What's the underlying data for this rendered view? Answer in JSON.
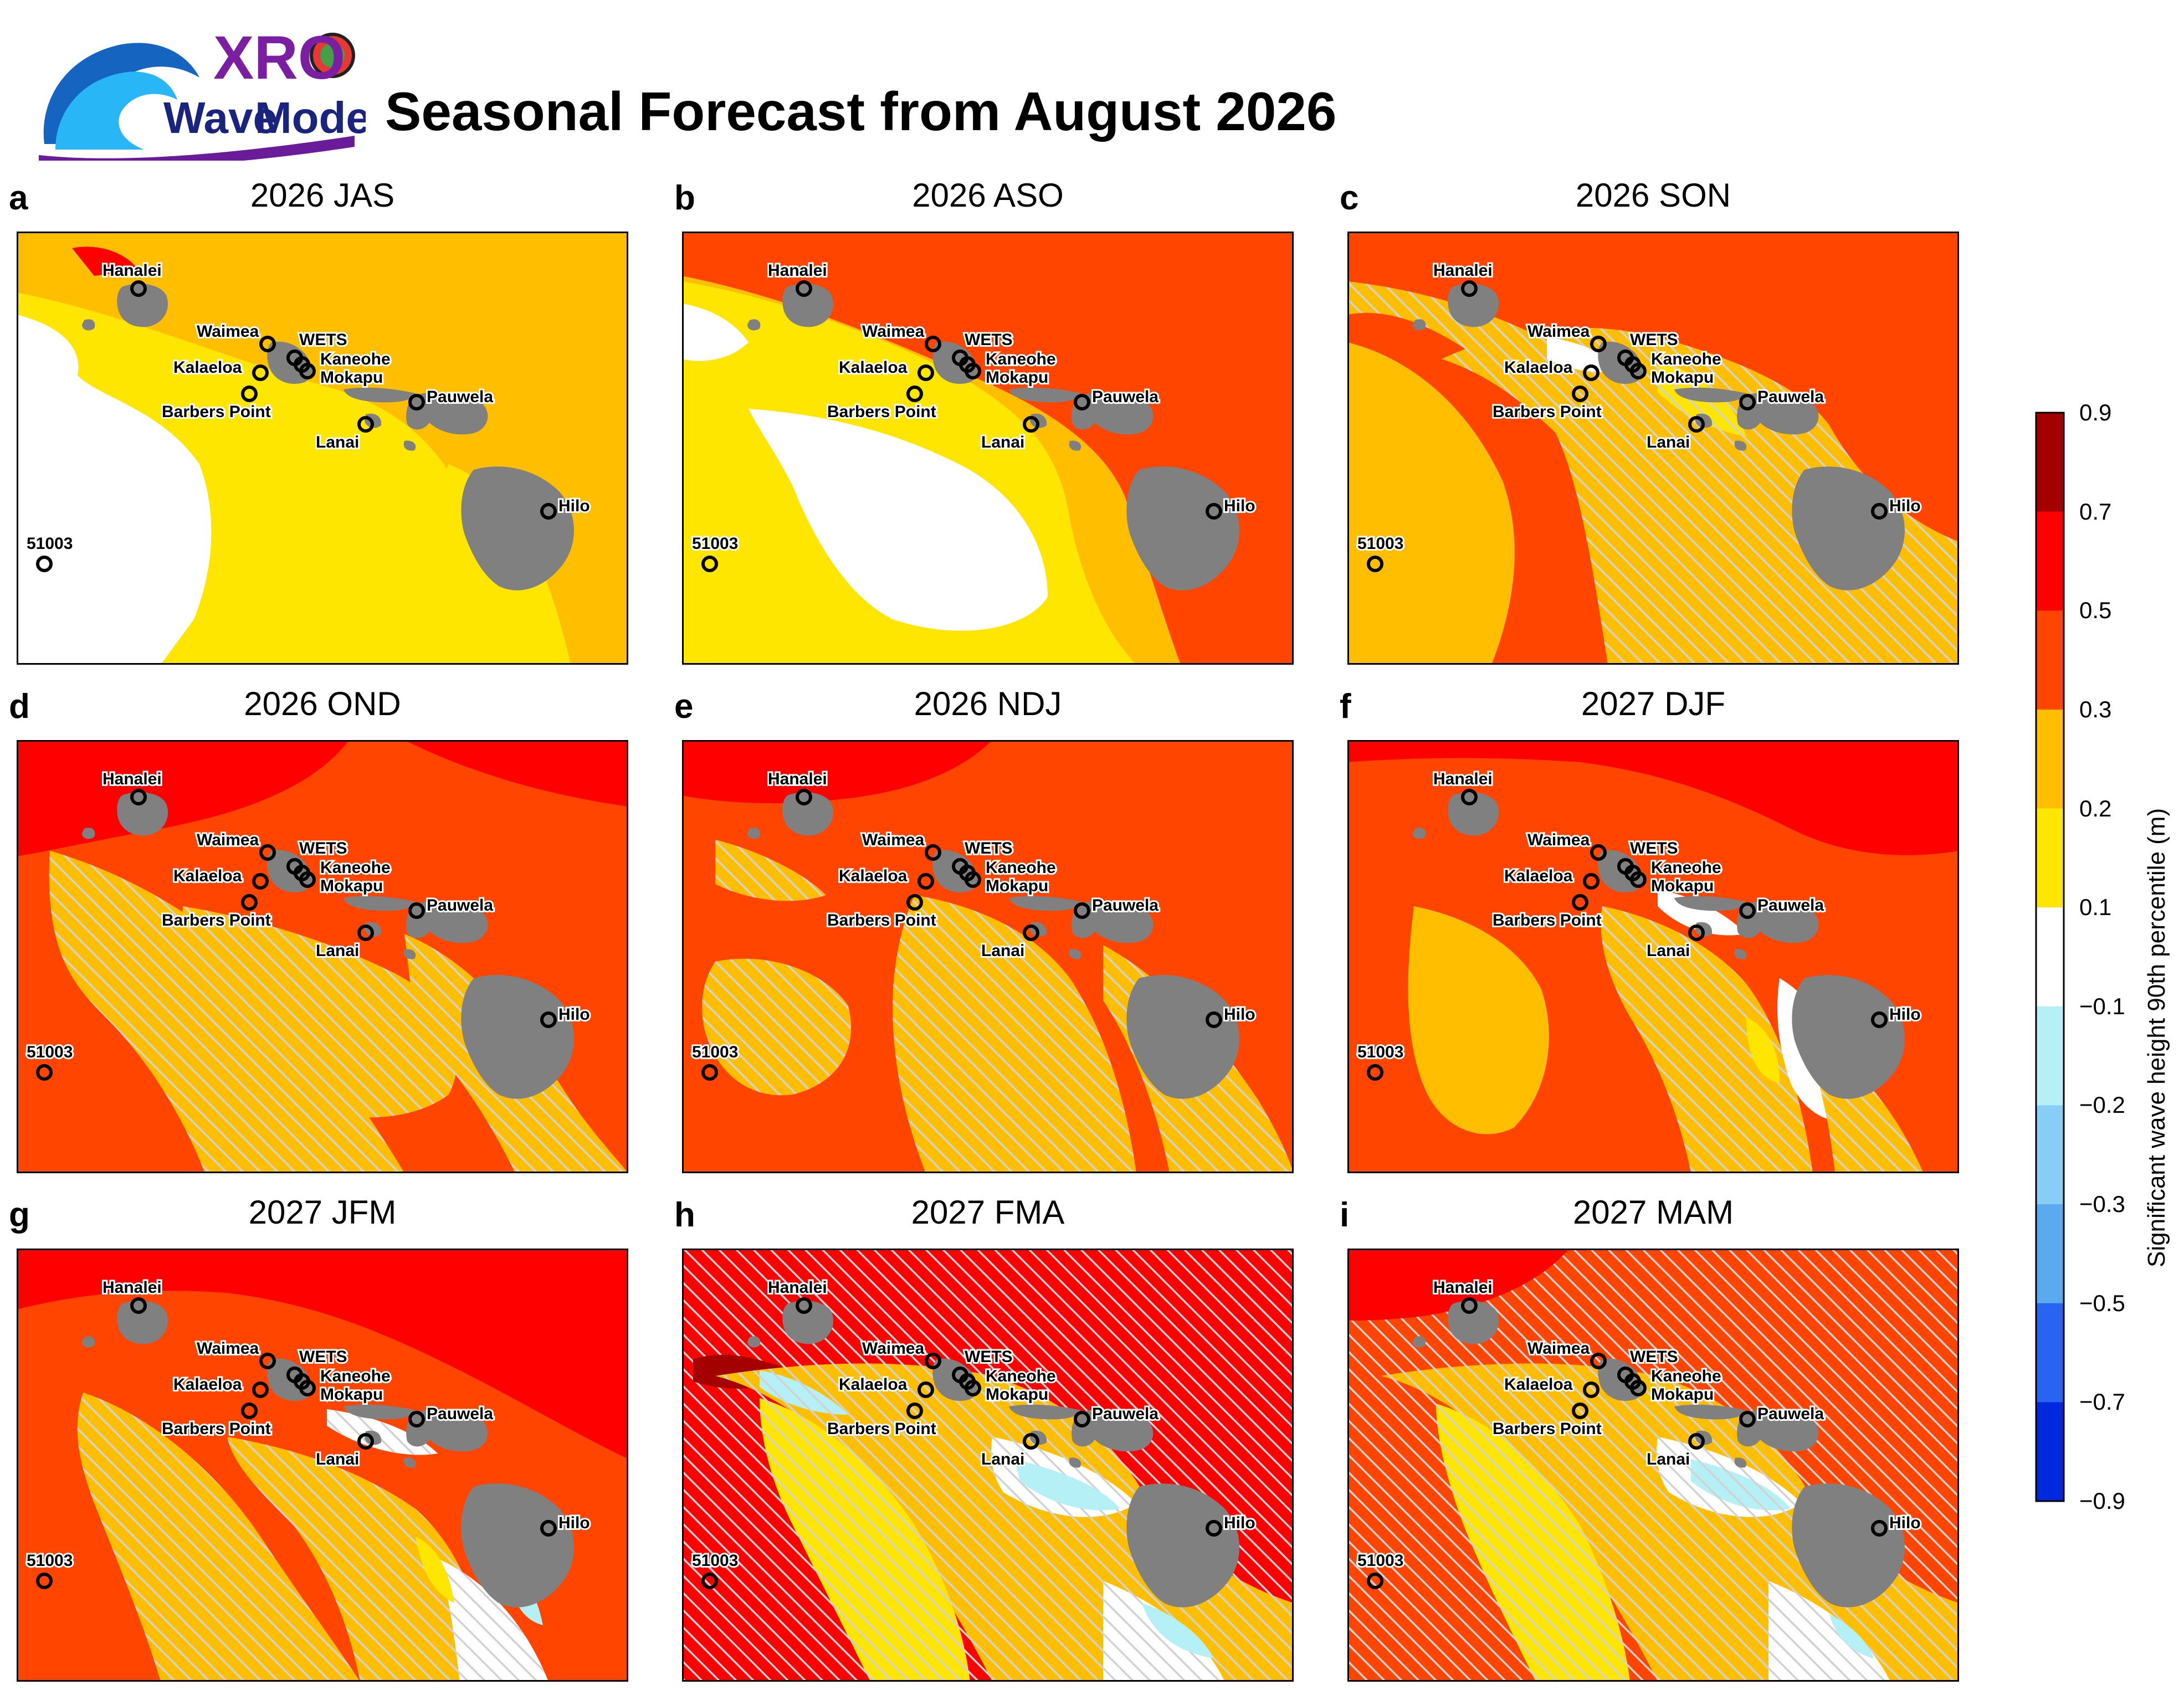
{
  "header": {
    "title": "Seasonal Forecast from August 2026",
    "logo": {
      "brand_top": "XRO",
      "brand_bottom_1": "Wave",
      "brand_bottom_2": "Model"
    }
  },
  "panels": [
    {
      "letter": "a",
      "title": "2026 JAS",
      "style": "jas"
    },
    {
      "letter": "b",
      "title": "2026 ASO",
      "style": "aso"
    },
    {
      "letter": "c",
      "title": "2026 SON",
      "style": "son"
    },
    {
      "letter": "d",
      "title": "2026 OND",
      "style": "ond"
    },
    {
      "letter": "e",
      "title": "2026 NDJ",
      "style": "ndj"
    },
    {
      "letter": "f",
      "title": "2027 DJF",
      "style": "djf"
    },
    {
      "letter": "g",
      "title": "2027 JFM",
      "style": "jfm"
    },
    {
      "letter": "h",
      "title": "2027 FMA",
      "style": "fma"
    },
    {
      "letter": "i",
      "title": "2027 MAM",
      "style": "mam"
    }
  ],
  "stations": [
    {
      "name": "Hanalei"
    },
    {
      "name": "Waimea"
    },
    {
      "name": "WETS"
    },
    {
      "name": "Kaneohe"
    },
    {
      "name": "Kalaeloa"
    },
    {
      "name": "Mokapu"
    },
    {
      "name": "Barbers Point"
    },
    {
      "name": "Pauwela"
    },
    {
      "name": "Lanai"
    },
    {
      "name": "Hilo"
    },
    {
      "name": "51003"
    }
  ],
  "colorbar": {
    "label": "Significant wave height 90th percentile (m)",
    "ticks": [
      "0.9",
      "0.7",
      "0.5",
      "0.3",
      "0.2",
      "0.1",
      "−0.1",
      "−0.2",
      "−0.3",
      "−0.5",
      "−0.7",
      "−0.9"
    ],
    "colors": [
      "#a50000",
      "#ff0000",
      "#ff4500",
      "#ffbf00",
      "#ffe600",
      "#ffffff",
      "#b4f0f5",
      "#87cdf5",
      "#5aaaf0",
      "#2864f0",
      "#0028dc"
    ]
  },
  "colors": {
    "land": "#808080",
    "hatch": "#d2d2d2",
    "station_ring_fill": "#ffffff"
  }
}
